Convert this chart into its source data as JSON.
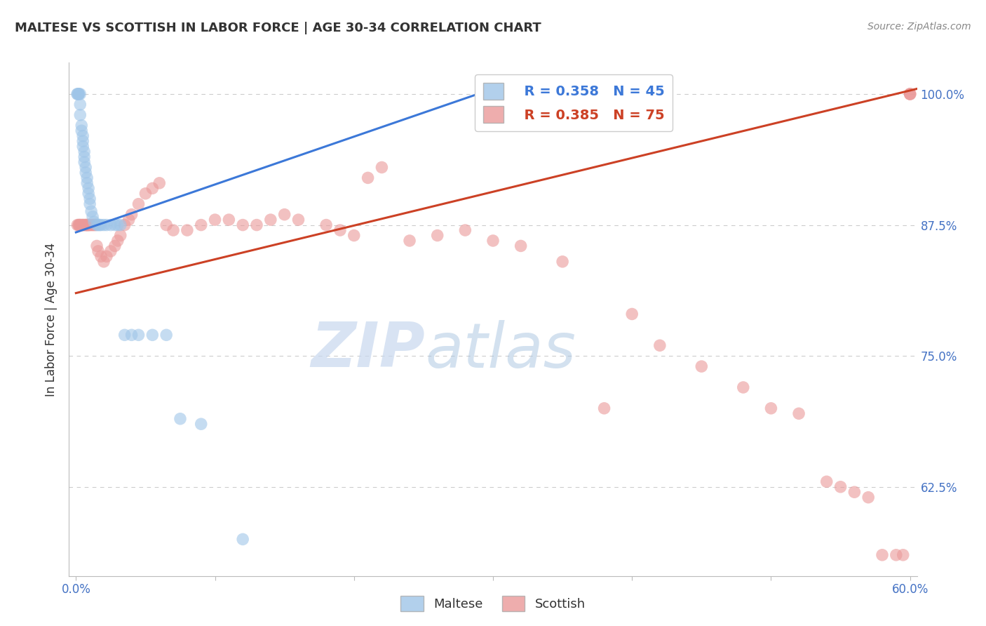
{
  "title": "MALTESE VS SCOTTISH IN LABOR FORCE | AGE 30-34 CORRELATION CHART",
  "source": "Source: ZipAtlas.com",
  "ylabel": "In Labor Force | Age 30-34",
  "xlim": [
    -0.005,
    0.605
  ],
  "ylim": [
    0.54,
    1.03
  ],
  "xticks": [
    0.0,
    0.1,
    0.2,
    0.3,
    0.4,
    0.5,
    0.6
  ],
  "xticklabels": [
    "0.0%",
    "",
    "",
    "",
    "",
    "",
    "60.0%"
  ],
  "yticks": [
    0.625,
    0.75,
    0.875,
    1.0
  ],
  "yticklabels": [
    "62.5%",
    "75.0%",
    "87.5%",
    "100.0%"
  ],
  "maltese_R": 0.358,
  "maltese_N": 45,
  "scottish_R": 0.385,
  "scottish_N": 75,
  "blue_color": "#9fc5e8",
  "pink_color": "#ea9999",
  "blue_line_color": "#3c78d8",
  "pink_line_color": "#cc4125",
  "blue_line_x": [
    0.0,
    0.3
  ],
  "blue_line_y": [
    0.868,
    1.005
  ],
  "pink_line_x": [
    0.0,
    0.605
  ],
  "pink_line_y": [
    0.81,
    1.005
  ],
  "maltese_x": [
    0.001,
    0.001,
    0.002,
    0.002,
    0.002,
    0.003,
    0.003,
    0.003,
    0.004,
    0.004,
    0.005,
    0.005,
    0.005,
    0.006,
    0.006,
    0.006,
    0.007,
    0.007,
    0.008,
    0.008,
    0.009,
    0.009,
    0.01,
    0.01,
    0.011,
    0.012,
    0.013,
    0.015,
    0.016,
    0.017,
    0.018,
    0.02,
    0.022,
    0.025,
    0.028,
    0.03,
    0.032,
    0.035,
    0.04,
    0.045,
    0.055,
    0.065,
    0.075,
    0.09,
    0.12
  ],
  "maltese_y": [
    1.0,
    1.0,
    1.0,
    1.0,
    1.0,
    1.0,
    0.99,
    0.98,
    0.97,
    0.965,
    0.96,
    0.955,
    0.95,
    0.945,
    0.94,
    0.935,
    0.93,
    0.925,
    0.92,
    0.915,
    0.91,
    0.905,
    0.9,
    0.895,
    0.888,
    0.883,
    0.878,
    0.875,
    0.875,
    0.875,
    0.875,
    0.875,
    0.875,
    0.875,
    0.875,
    0.875,
    0.875,
    0.77,
    0.77,
    0.77,
    0.77,
    0.77,
    0.69,
    0.685,
    0.575
  ],
  "scottish_x": [
    0.001,
    0.002,
    0.002,
    0.003,
    0.003,
    0.004,
    0.005,
    0.005,
    0.006,
    0.007,
    0.007,
    0.008,
    0.008,
    0.009,
    0.009,
    0.01,
    0.011,
    0.012,
    0.013,
    0.014,
    0.015,
    0.016,
    0.018,
    0.02,
    0.022,
    0.025,
    0.028,
    0.03,
    0.032,
    0.035,
    0.038,
    0.04,
    0.045,
    0.05,
    0.055,
    0.06,
    0.065,
    0.07,
    0.08,
    0.09,
    0.1,
    0.11,
    0.12,
    0.13,
    0.14,
    0.15,
    0.16,
    0.18,
    0.19,
    0.2,
    0.21,
    0.22,
    0.24,
    0.26,
    0.28,
    0.3,
    0.32,
    0.35,
    0.38,
    0.4,
    0.42,
    0.45,
    0.48,
    0.5,
    0.52,
    0.54,
    0.55,
    0.56,
    0.57,
    0.58,
    0.59,
    0.595,
    0.6,
    0.6,
    0.6
  ],
  "scottish_y": [
    0.875,
    0.875,
    0.875,
    0.875,
    0.875,
    0.875,
    0.875,
    0.875,
    0.875,
    0.875,
    0.875,
    0.875,
    0.875,
    0.875,
    0.875,
    0.875,
    0.875,
    0.875,
    0.875,
    0.875,
    0.855,
    0.85,
    0.845,
    0.84,
    0.845,
    0.85,
    0.855,
    0.86,
    0.865,
    0.875,
    0.88,
    0.885,
    0.895,
    0.905,
    0.91,
    0.915,
    0.875,
    0.87,
    0.87,
    0.875,
    0.88,
    0.88,
    0.875,
    0.875,
    0.88,
    0.885,
    0.88,
    0.875,
    0.87,
    0.865,
    0.92,
    0.93,
    0.86,
    0.865,
    0.87,
    0.86,
    0.855,
    0.84,
    0.7,
    0.79,
    0.76,
    0.74,
    0.72,
    0.7,
    0.695,
    0.63,
    0.625,
    0.62,
    0.615,
    0.56,
    0.56,
    0.56,
    1.0,
    1.0,
    1.0
  ],
  "watermark_zip": "ZIP",
  "watermark_atlas": "atlas",
  "background_color": "#ffffff",
  "grid_color": "#cccccc",
  "tick_color": "#4472c4",
  "legend_label_blue": "Maltese",
  "legend_label_pink": "Scottish"
}
